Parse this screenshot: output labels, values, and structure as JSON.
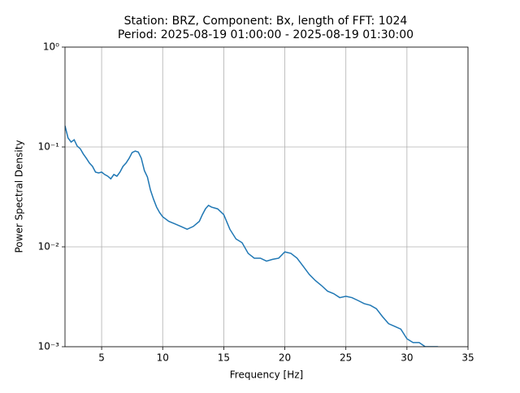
{
  "chart_data": {
    "type": "line",
    "title": "Station: BRZ, Component: Bx, length of FFT: 1024",
    "subtitle": "Period: 2025-08-19 01:00:00 - 2025-08-19 01:30:00",
    "x_label": "Frequency [Hz]",
    "y_label": "Power Spectral Density",
    "log_y": true,
    "grid": true,
    "xlim": [
      2,
      35
    ],
    "xticks": [
      5,
      10,
      15,
      20,
      25,
      30,
      35
    ],
    "ylim": [
      0.001,
      1
    ],
    "yticks": [
      {
        "value": 0.001,
        "label": "10⁻³"
      },
      {
        "value": 0.01,
        "label": "10⁻²"
      },
      {
        "value": 0.1,
        "label": "10⁻¹"
      },
      {
        "value": 1,
        "label": "10⁰"
      }
    ],
    "x": [
      2,
      2.25,
      2.5,
      2.75,
      3,
      3.25,
      3.5,
      3.75,
      4,
      4.25,
      4.5,
      4.75,
      5,
      5.25,
      5.5,
      5.75,
      6,
      6.25,
      6.5,
      6.75,
      7,
      7.25,
      7.5,
      7.75,
      8,
      8.25,
      8.5,
      8.75,
      9,
      9.25,
      9.5,
      9.75,
      10,
      10.5,
      11,
      11.5,
      12,
      12.5,
      13,
      13.25,
      13.5,
      13.75,
      14,
      14.5,
      15,
      15.5,
      16,
      16.5,
      17,
      17.5,
      18,
      18.5,
      19,
      19.5,
      20,
      20.5,
      21,
      21.5,
      22,
      22.5,
      23,
      23.5,
      24,
      24.5,
      25,
      25.5,
      26,
      26.5,
      27,
      27.5,
      28,
      28.5,
      29,
      29.5,
      30,
      30.5,
      31,
      31.5,
      32,
      32.5,
      33
    ],
    "series": [
      {
        "name": "Bx",
        "color": "#1f77b4",
        "values": [
          0.163,
          0.123,
          0.112,
          0.118,
          0.102,
          0.096,
          0.085,
          0.077,
          0.069,
          0.064,
          0.056,
          0.055,
          0.056,
          0.053,
          0.051,
          0.048,
          0.053,
          0.051,
          0.056,
          0.064,
          0.069,
          0.077,
          0.088,
          0.091,
          0.089,
          0.077,
          0.058,
          0.05,
          0.037,
          0.03,
          0.025,
          0.022,
          0.02,
          0.018,
          0.017,
          0.016,
          0.015,
          0.016,
          0.018,
          0.021,
          0.024,
          0.026,
          0.025,
          0.024,
          0.021,
          0.015,
          0.012,
          0.011,
          0.0086,
          0.0077,
          0.0077,
          0.0072,
          0.0075,
          0.0077,
          0.0089,
          0.0086,
          0.0077,
          0.0064,
          0.0053,
          0.0046,
          0.0041,
          0.0036,
          0.0034,
          0.0031,
          0.0032,
          0.0031,
          0.0029,
          0.0027,
          0.0026,
          0.0024,
          0.002,
          0.0017,
          0.0016,
          0.0015,
          0.0012,
          0.0011,
          0.0011,
          0.001,
          0.001,
          0.001,
          0.00095
        ]
      }
    ]
  }
}
